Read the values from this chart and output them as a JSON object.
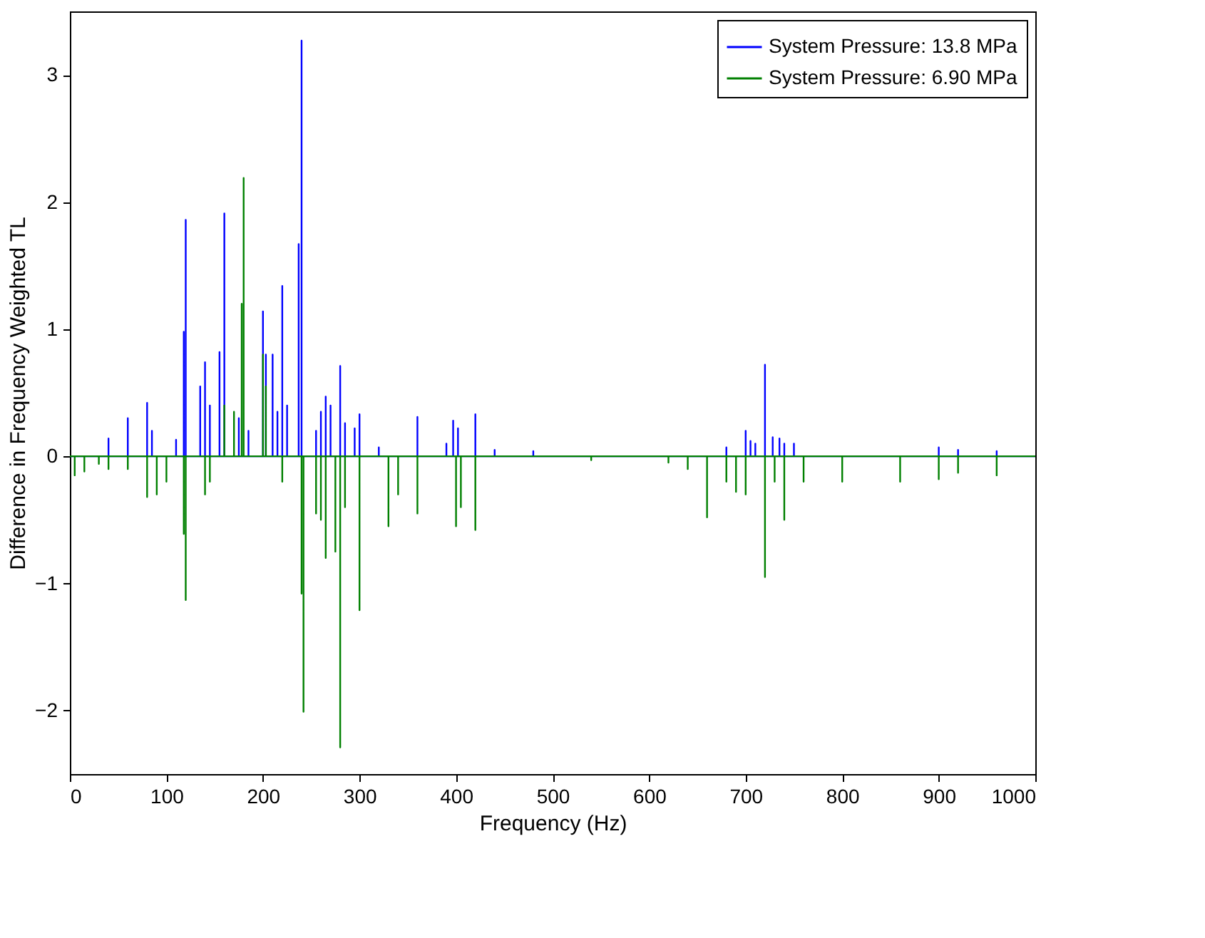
{
  "chart_data": {
    "type": "line",
    "xlabel": "Frequency (Hz)",
    "ylabel": "Difference in Frequency Weighted TL",
    "xlim": [
      0,
      1000
    ],
    "xticks": [
      0,
      100,
      200,
      300,
      400,
      500,
      600,
      700,
      800,
      900,
      1000
    ],
    "ylim": [
      -2.5,
      3.5
    ],
    "yticks": [
      -2,
      -1,
      0,
      1,
      2,
      3
    ],
    "grid": false,
    "legend": "top right",
    "line_style": "solid",
    "marker": "none",
    "series": [
      {
        "name": "System Pressure: 13.8 MPa",
        "color": "#0000ff",
        "x": [
          0,
          40,
          40,
          40,
          60,
          60,
          60,
          80,
          80,
          80,
          85,
          85,
          85,
          110,
          110,
          110,
          118,
          118,
          118,
          120,
          120,
          120,
          135,
          135,
          135,
          140,
          140,
          140,
          145,
          145,
          145,
          155,
          155,
          155,
          160,
          160,
          160,
          175,
          175,
          175,
          185,
          185,
          185,
          200,
          200,
          200,
          203,
          203,
          203,
          210,
          210,
          210,
          215,
          215,
          215,
          220,
          220,
          220,
          225,
          225,
          225,
          237,
          237,
          237,
          240,
          240,
          240,
          255,
          255,
          255,
          260,
          260,
          260,
          265,
          265,
          265,
          270,
          270,
          270,
          280,
          280,
          280,
          285,
          285,
          285,
          295,
          295,
          295,
          300,
          300,
          300,
          320,
          320,
          320,
          360,
          360,
          360,
          390,
          390,
          390,
          397,
          397,
          397,
          402,
          402,
          402,
          420,
          420,
          420,
          440,
          440,
          440,
          480,
          480,
          480,
          680,
          680,
          680,
          700,
          700,
          700,
          705,
          705,
          705,
          710,
          710,
          710,
          720,
          720,
          720,
          728,
          728,
          728,
          735,
          735,
          735,
          740,
          740,
          740,
          750,
          750,
          750,
          900,
          900,
          900,
          920,
          920,
          920,
          960,
          960,
          960,
          1000
        ],
        "values": [
          0,
          0,
          0.14,
          0,
          0,
          0.3,
          0,
          0,
          0.42,
          0,
          0,
          0.2,
          0,
          0,
          0.13,
          0,
          0,
          0.98,
          0,
          0,
          1.86,
          0,
          0,
          0.55,
          0,
          0,
          0.74,
          0,
          0,
          0.4,
          0,
          0,
          0.82,
          0,
          0,
          1.91,
          0,
          0,
          0.3,
          0,
          0,
          0.2,
          0,
          0,
          1.14,
          0,
          0,
          0.8,
          0,
          0,
          0.8,
          0,
          0,
          0.35,
          0,
          0,
          1.34,
          0,
          0,
          0.4,
          0,
          0,
          1.67,
          0,
          0,
          3.27,
          0,
          0,
          0.2,
          0,
          0,
          0.35,
          0,
          0,
          0.47,
          0,
          0,
          0.4,
          0,
          0,
          0.71,
          0,
          0,
          0.26,
          0,
          0,
          0.22,
          0,
          0,
          0.33,
          0,
          0,
          0.07,
          0,
          0,
          0.31,
          0,
          0,
          0.1,
          0,
          0,
          0.28,
          0,
          0,
          0.22,
          0,
          0,
          0.33,
          0,
          0,
          0.05,
          0,
          0,
          0.04,
          0,
          0,
          0.07,
          0,
          0,
          0.2,
          0,
          0,
          0.12,
          0,
          0,
          0.1,
          0,
          0,
          0.72,
          0,
          0,
          0.15,
          0,
          0,
          0.14,
          0,
          0,
          0.1,
          0,
          0,
          0.1,
          0,
          0,
          0.07,
          0,
          0,
          0.05,
          0,
          0,
          0.04,
          0,
          0
        ]
      },
      {
        "name": "System Pressure: 6.90 MPa",
        "color": "#008000",
        "x": [
          0,
          5,
          5,
          5,
          15,
          15,
          15,
          30,
          30,
          30,
          40,
          40,
          40,
          60,
          60,
          60,
          80,
          80,
          80,
          90,
          90,
          90,
          100,
          100,
          100,
          118,
          118,
          118,
          120,
          120,
          120,
          140,
          140,
          140,
          145,
          145,
          145,
          160,
          160,
          160,
          170,
          170,
          170,
          178,
          178,
          178,
          180,
          180,
          180,
          200,
          200,
          200,
          203,
          203,
          203,
          220,
          220,
          220,
          240,
          240,
          240,
          242,
          242,
          242,
          255,
          255,
          255,
          260,
          260,
          260,
          265,
          265,
          265,
          275,
          275,
          275,
          280,
          280,
          280,
          285,
          285,
          285,
          300,
          300,
          300,
          330,
          330,
          330,
          340,
          340,
          340,
          360,
          360,
          360,
          400,
          400,
          400,
          405,
          405,
          405,
          420,
          420,
          420,
          540,
          540,
          540,
          620,
          620,
          620,
          640,
          640,
          640,
          660,
          660,
          660,
          680,
          680,
          680,
          690,
          690,
          690,
          700,
          700,
          700,
          720,
          720,
          720,
          730,
          730,
          730,
          740,
          740,
          740,
          760,
          760,
          760,
          800,
          800,
          800,
          860,
          860,
          860,
          900,
          900,
          900,
          920,
          920,
          920,
          960,
          960,
          960,
          1000
        ],
        "values": [
          0,
          0,
          -0.15,
          0,
          0,
          -0.12,
          0,
          0,
          -0.06,
          0,
          0,
          -0.1,
          0,
          0,
          -0.1,
          0,
          0,
          -0.32,
          0,
          0,
          -0.3,
          0,
          0,
          -0.2,
          0,
          0,
          -0.61,
          0,
          0,
          -1.13,
          0,
          0,
          -0.3,
          0,
          0,
          -0.2,
          0,
          0,
          0.4,
          0,
          0,
          0.35,
          0,
          0,
          1.2,
          0,
          0,
          2.19,
          0,
          0,
          0.8,
          0,
          0,
          0.55,
          0,
          0,
          -0.2,
          0,
          0,
          -1.08,
          0,
          0,
          -2.01,
          0,
          0,
          -0.45,
          0,
          0,
          -0.5,
          0,
          0,
          -0.8,
          0,
          0,
          -0.75,
          0,
          0,
          -2.29,
          0,
          0,
          -0.4,
          0,
          0,
          -1.21,
          0,
          0,
          -0.55,
          0,
          0,
          -0.3,
          0,
          0,
          -0.45,
          0,
          0,
          -0.55,
          0,
          0,
          -0.4,
          0,
          0,
          -0.58,
          0,
          0,
          -0.03,
          0,
          0,
          -0.05,
          0,
          0,
          -0.1,
          0,
          0,
          -0.48,
          0,
          0,
          -0.2,
          0,
          0,
          -0.28,
          0,
          0,
          -0.3,
          0,
          0,
          -0.95,
          0,
          0,
          -0.2,
          0,
          0,
          -0.5,
          0,
          0,
          -0.2,
          0,
          0,
          -0.2,
          0,
          0,
          -0.2,
          0,
          0,
          -0.18,
          0,
          0,
          -0.13,
          0,
          0,
          -0.15,
          0,
          0
        ]
      }
    ]
  }
}
